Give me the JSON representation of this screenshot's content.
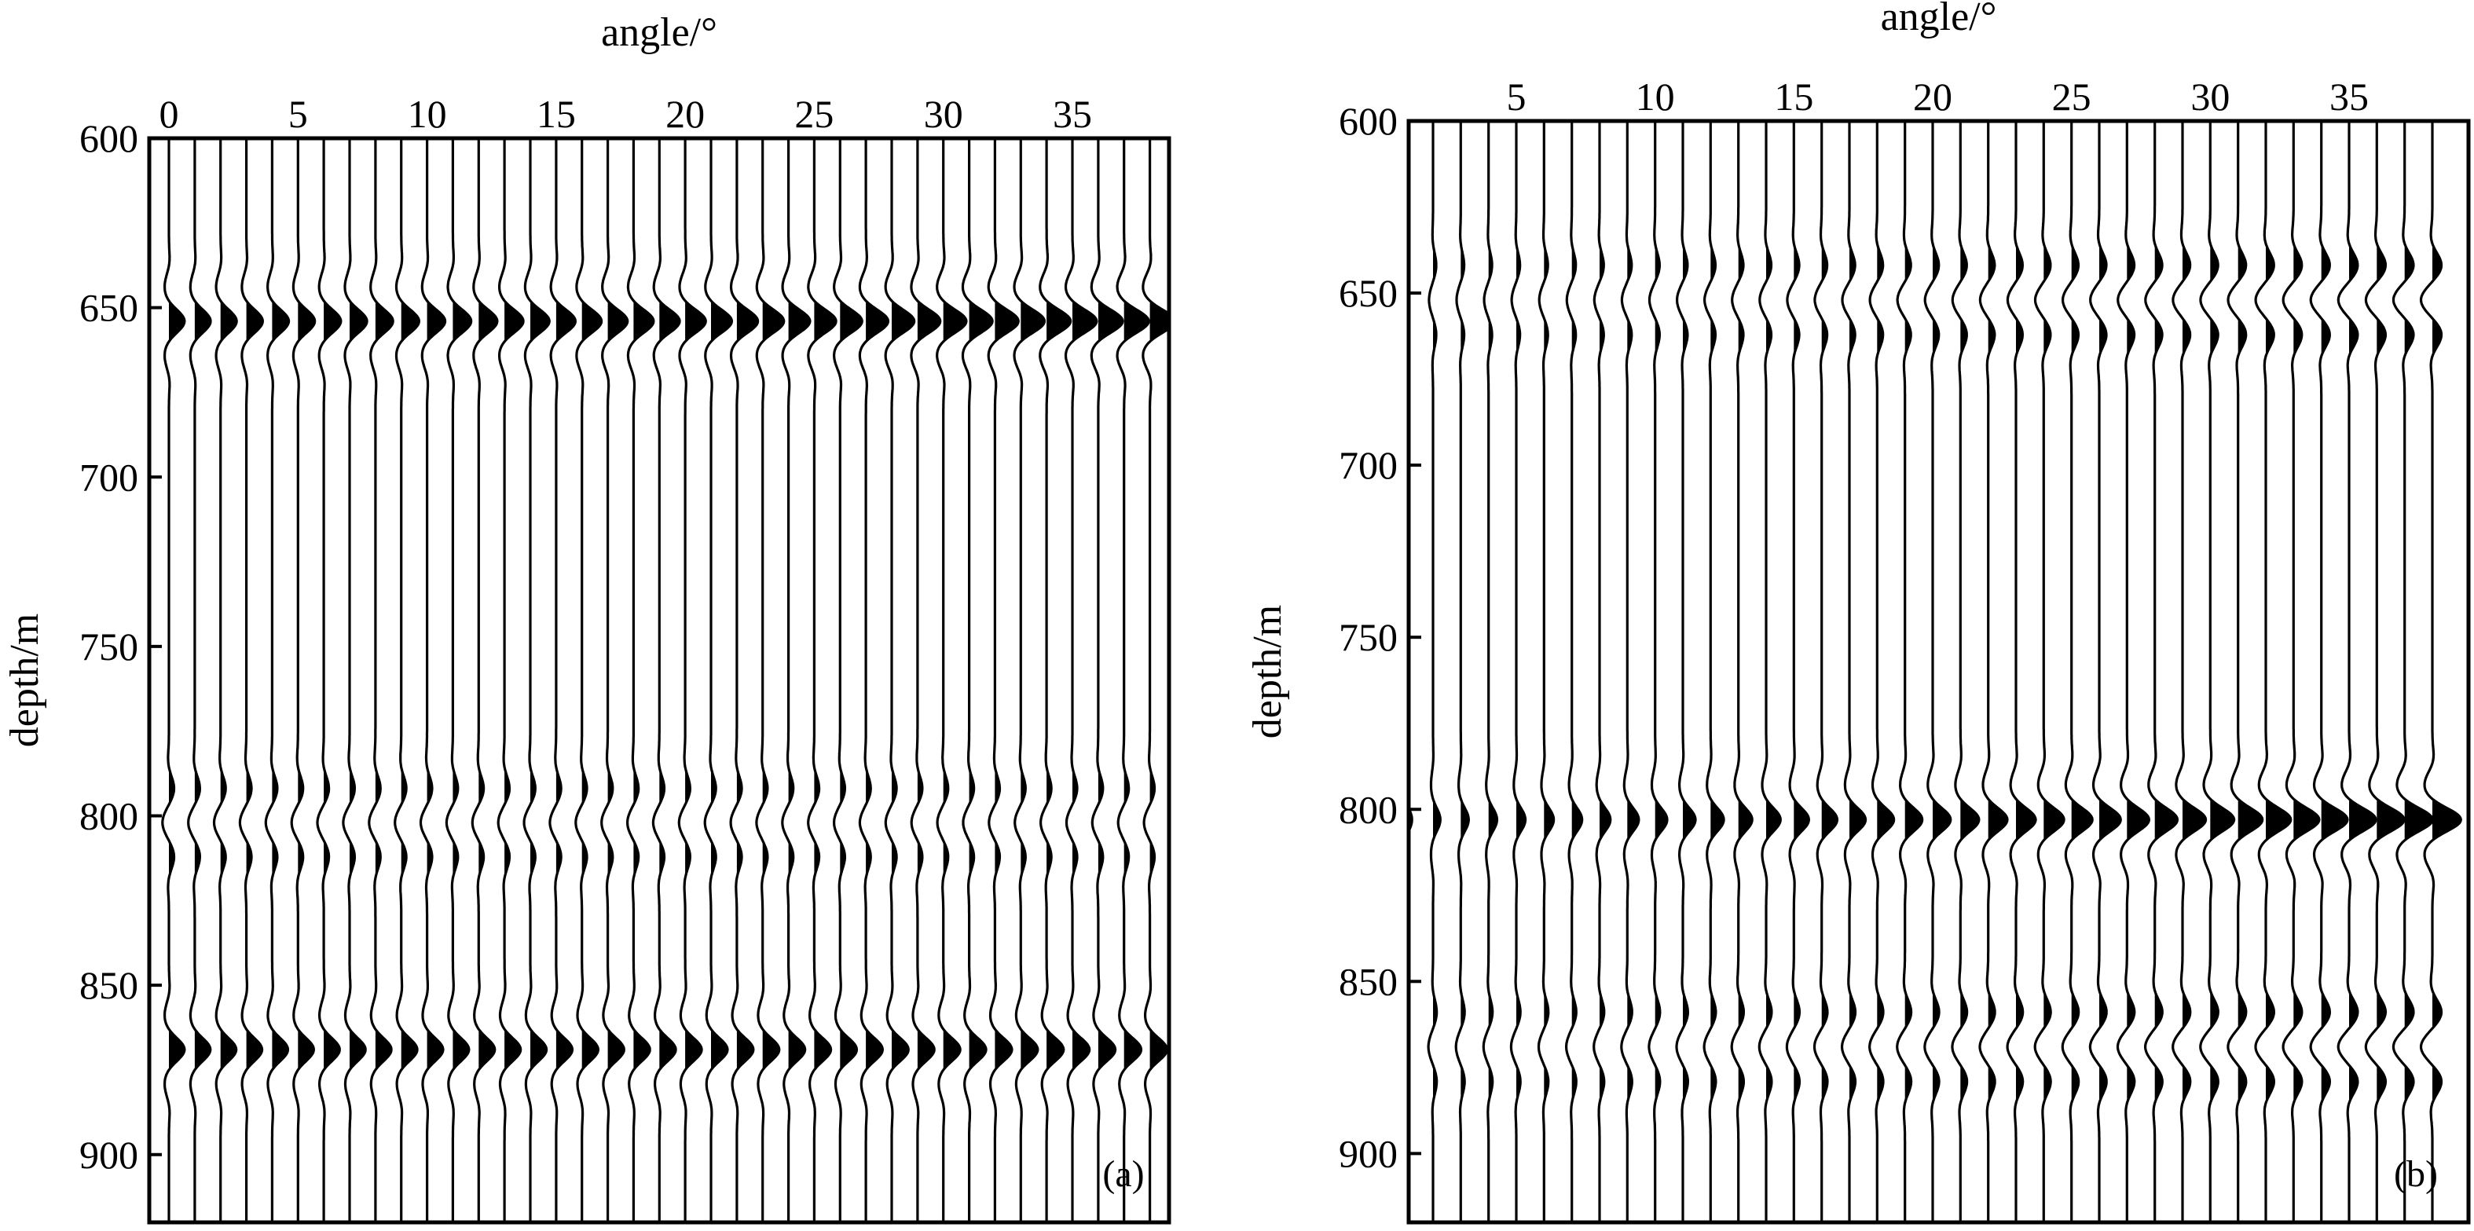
{
  "chart_data": [
    {
      "type": "seismic_wiggle_gather",
      "panel_label": "(a)",
      "xlabel": "angle/°",
      "ylabel": "depth/m",
      "x_tick_labels": [
        "0",
        "5",
        "10",
        "15",
        "20",
        "25",
        "30",
        "35"
      ],
      "x_tick_values": [
        0,
        5,
        10,
        15,
        20,
        25,
        30,
        35
      ],
      "y_tick_labels": [
        "600",
        "650",
        "700",
        "750",
        "800",
        "850",
        "900"
      ],
      "y_tick_values": [
        600,
        650,
        700,
        750,
        800,
        850,
        900
      ],
      "ylim": [
        600,
        920
      ],
      "xlim": [
        -1,
        39
      ],
      "trace_angles": [
        0,
        1,
        2,
        3,
        4,
        5,
        6,
        7,
        8,
        9,
        10,
        11,
        12,
        13,
        14,
        15,
        16,
        17,
        18,
        19,
        20,
        21,
        22,
        23,
        24,
        25,
        26,
        27,
        28,
        29,
        30,
        31,
        32,
        33,
        34,
        35,
        36,
        37,
        38
      ],
      "events": [
        {
          "depth": 654,
          "type": "single_peak",
          "amplitude_start": 1.0,
          "amplitude_end": 1.6
        },
        {
          "depth": 802,
          "type": "doublet",
          "amplitude_start": 0.55,
          "amplitude_end": 0.5
        },
        {
          "depth": 869,
          "type": "single_peak",
          "amplitude_start": 1.0,
          "amplitude_end": 1.1
        }
      ]
    },
    {
      "type": "seismic_wiggle_gather",
      "panel_label": "(b)",
      "xlabel": "angle/°",
      "ylabel": "depth/m",
      "x_tick_labels": [
        "5",
        "10",
        "15",
        "20",
        "25",
        "30",
        "35"
      ],
      "x_tick_values": [
        5,
        10,
        15,
        20,
        25,
        30,
        35
      ],
      "y_tick_labels": [
        "600",
        "650",
        "700",
        "750",
        "800",
        "850",
        "900"
      ],
      "y_tick_values": [
        600,
        650,
        700,
        750,
        800,
        850,
        900
      ],
      "ylim": [
        600,
        920
      ],
      "xlim": [
        0,
        39
      ],
      "trace_angles": [
        1,
        2,
        3,
        4,
        5,
        6,
        7,
        8,
        9,
        10,
        11,
        12,
        13,
        14,
        15,
        16,
        17,
        18,
        19,
        20,
        21,
        22,
        23,
        24,
        25,
        26,
        27,
        28,
        29,
        30,
        31,
        32,
        33,
        34,
        35,
        36,
        37,
        38
      ],
      "events": [
        {
          "depth": 652,
          "type": "doublet",
          "amplitude_start": 0.3,
          "amplitude_end": 0.9
        },
        {
          "depth": 803,
          "type": "single_peak",
          "amplitude_start": 0.4,
          "amplitude_end": 1.7
        },
        {
          "depth": 869,
          "type": "doublet",
          "amplitude_start": 0.35,
          "amplitude_end": 0.9
        }
      ]
    }
  ]
}
